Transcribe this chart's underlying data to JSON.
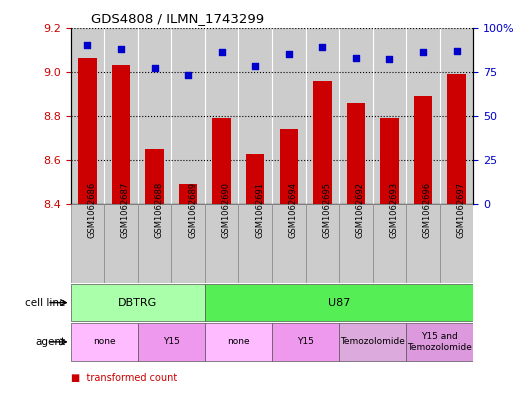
{
  "title": "GDS4808 / ILMN_1743299",
  "samples": [
    "GSM1062686",
    "GSM1062687",
    "GSM1062688",
    "GSM1062689",
    "GSM1062690",
    "GSM1062691",
    "GSM1062694",
    "GSM1062695",
    "GSM1062692",
    "GSM1062693",
    "GSM1062696",
    "GSM1062697"
  ],
  "transformed_counts": [
    9.06,
    9.03,
    8.65,
    8.49,
    8.79,
    8.63,
    8.74,
    8.96,
    8.86,
    8.79,
    8.89,
    8.99
  ],
  "percentile_ranks": [
    90,
    88,
    77,
    73,
    86,
    78,
    85,
    89,
    83,
    82,
    86,
    87
  ],
  "ylim_left": [
    8.4,
    9.2
  ],
  "ylim_right": [
    0,
    100
  ],
  "yticks_left": [
    8.4,
    8.6,
    8.8,
    9.0,
    9.2
  ],
  "yticks_right": [
    0,
    25,
    50,
    75,
    100
  ],
  "bar_color": "#cc0000",
  "dot_color": "#0000cc",
  "bar_bottom": 8.4,
  "cell_line_groups": [
    {
      "label": "DBTRG",
      "start": 0,
      "end": 4,
      "color": "#aaffaa"
    },
    {
      "label": "U87",
      "start": 4,
      "end": 12,
      "color": "#55ee55"
    }
  ],
  "agent_groups": [
    {
      "label": "none",
      "start": 0,
      "end": 2,
      "color": "#ffbbff"
    },
    {
      "label": "Y15",
      "start": 2,
      "end": 4,
      "color": "#ee99ee"
    },
    {
      "label": "none",
      "start": 4,
      "end": 6,
      "color": "#ffbbff"
    },
    {
      "label": "Y15",
      "start": 6,
      "end": 8,
      "color": "#ee99ee"
    },
    {
      "label": "Temozolomide",
      "start": 8,
      "end": 10,
      "color": "#ddaadd"
    },
    {
      "label": "Y15 and\nTemozolomide",
      "start": 10,
      "end": 12,
      "color": "#dd99dd"
    }
  ],
  "sample_col_color": "#cccccc",
  "background_color": "#ffffff",
  "tick_color_left": "#cc0000",
  "tick_color_right": "#0000cc"
}
